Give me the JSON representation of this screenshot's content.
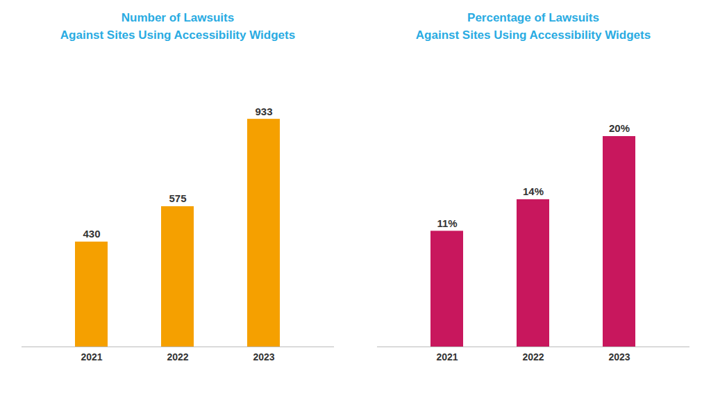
{
  "chart_data": [
    {
      "type": "bar",
      "title": "Number of Lawsuits\nAgainst Sites Using Accessibility Widgets",
      "categories": [
        "2021",
        "2022",
        "2023"
      ],
      "values": [
        430,
        575,
        933
      ],
      "color": "#F5A000",
      "ylim": [
        0,
        1138.26
      ],
      "grid": false,
      "data_labels": true,
      "tick_labels": "x"
    },
    {
      "type": "bar",
      "title": "Percentage of Lawsuits\nAgainst Sites Using Accessibility Widgets",
      "categories": [
        "2021",
        "2022",
        "2023"
      ],
      "values": [
        11,
        14,
        20
      ],
      "value_labels": [
        "11%",
        "14%",
        "20%"
      ],
      "color": "#C8175D",
      "ylim": [
        0,
        26.4
      ],
      "grid": false,
      "data_labels": true,
      "tick_labels": "x"
    }
  ]
}
